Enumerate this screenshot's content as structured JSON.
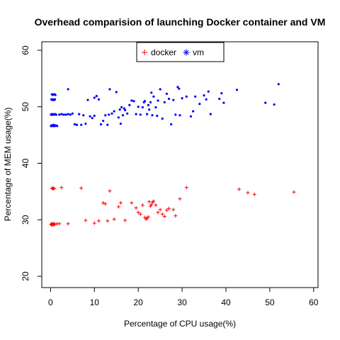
{
  "chart_data": {
    "type": "scatter",
    "title": "Overhead comparision of launching Docker container and VM",
    "xlabel": "Percentage of CPU usage(%)",
    "ylabel": "Percentage of MEM usage(%)",
    "xlim": [
      -2,
      61
    ],
    "ylim": [
      18,
      61.5
    ],
    "xticks": [
      0,
      10,
      20,
      30,
      40,
      50,
      60
    ],
    "yticks": [
      20,
      30,
      40,
      50,
      60
    ],
    "legend_position": "top-center",
    "series": [
      {
        "name": "docker",
        "marker": "plus",
        "color": "#ff0000",
        "points": [
          [
            0.1,
            29.2
          ],
          [
            0.2,
            29.1
          ],
          [
            0.3,
            29.3
          ],
          [
            0.4,
            29.2
          ],
          [
            0.5,
            29.1
          ],
          [
            0.6,
            29.2
          ],
          [
            0.7,
            29.3
          ],
          [
            0.8,
            29.2
          ],
          [
            1.0,
            29.2
          ],
          [
            1.5,
            29.3
          ],
          [
            2.0,
            29.3
          ],
          [
            4.0,
            29.3
          ],
          [
            0.3,
            35.6
          ],
          [
            0.5,
            35.5
          ],
          [
            0.7,
            35.6
          ],
          [
            0.8,
            35.5
          ],
          [
            2.5,
            35.7
          ],
          [
            7.0,
            35.6
          ],
          [
            13.5,
            35.1
          ],
          [
            8.0,
            29.9
          ],
          [
            10.0,
            29.4
          ],
          [
            11.0,
            29.8
          ],
          [
            13.0,
            29.8
          ],
          [
            17.0,
            29.9
          ],
          [
            12.0,
            33.0
          ],
          [
            12.5,
            32.8
          ],
          [
            14.5,
            30.1
          ],
          [
            15.5,
            32.3
          ],
          [
            16.0,
            33.0
          ],
          [
            18.5,
            33.0
          ],
          [
            19.5,
            32.1
          ],
          [
            20.0,
            31.3
          ],
          [
            20.5,
            31.0
          ],
          [
            21.0,
            32.6
          ],
          [
            21.5,
            30.4
          ],
          [
            21.8,
            30.1
          ],
          [
            22.0,
            30.3
          ],
          [
            22.3,
            30.5
          ],
          [
            22.5,
            33.2
          ],
          [
            22.8,
            32.4
          ],
          [
            23.0,
            32.7
          ],
          [
            23.3,
            33.1
          ],
          [
            23.5,
            33.3
          ],
          [
            24.0,
            32.6
          ],
          [
            24.5,
            31.3
          ],
          [
            25.0,
            31.8
          ],
          [
            25.5,
            31.0
          ],
          [
            26.0,
            30.6
          ],
          [
            26.5,
            31.7
          ],
          [
            27.0,
            32.0
          ],
          [
            28.0,
            31.8
          ],
          [
            28.5,
            30.7
          ],
          [
            29.5,
            33.7
          ],
          [
            31.0,
            35.7
          ],
          [
            43.0,
            35.4
          ],
          [
            45.0,
            34.8
          ],
          [
            46.5,
            34.5
          ],
          [
            55.5,
            34.9
          ]
        ]
      },
      {
        "name": "vm",
        "marker": "dot",
        "color": "#0000ff",
        "points": [
          [
            0.1,
            46.6
          ],
          [
            0.2,
            46.7
          ],
          [
            0.3,
            46.6
          ],
          [
            0.4,
            46.7
          ],
          [
            0.5,
            46.6
          ],
          [
            0.6,
            46.7
          ],
          [
            0.7,
            46.8
          ],
          [
            0.8,
            46.6
          ],
          [
            0.9,
            46.7
          ],
          [
            1.0,
            46.6
          ],
          [
            1.2,
            46.7
          ],
          [
            1.5,
            46.6
          ],
          [
            0.1,
            48.6
          ],
          [
            0.2,
            48.6
          ],
          [
            0.3,
            48.7
          ],
          [
            0.4,
            48.6
          ],
          [
            0.5,
            48.7
          ],
          [
            0.6,
            48.6
          ],
          [
            0.8,
            48.6
          ],
          [
            1.0,
            48.7
          ],
          [
            1.3,
            48.6
          ],
          [
            0.2,
            51.3
          ],
          [
            0.4,
            51.2
          ],
          [
            0.6,
            51.3
          ],
          [
            0.8,
            51.2
          ],
          [
            1.0,
            51.3
          ],
          [
            0.3,
            52.2
          ],
          [
            0.5,
            52.1
          ],
          [
            0.7,
            52.2
          ],
          [
            0.9,
            52.2
          ],
          [
            1.1,
            52.1
          ],
          [
            2.0,
            48.6
          ],
          [
            2.5,
            48.7
          ],
          [
            3.0,
            48.6
          ],
          [
            3.5,
            48.6
          ],
          [
            4.0,
            48.7
          ],
          [
            4.5,
            48.6
          ],
          [
            5.0,
            48.8
          ],
          [
            5.5,
            46.9
          ],
          [
            6.0,
            46.8
          ],
          [
            6.5,
            48.7
          ],
          [
            7.0,
            46.8
          ],
          [
            7.5,
            48.5
          ],
          [
            4.0,
            53.1
          ],
          [
            8.0,
            47.0
          ],
          [
            8.5,
            51.2
          ],
          [
            9.0,
            48.3
          ],
          [
            9.5,
            48.0
          ],
          [
            10.0,
            48.4
          ],
          [
            10.5,
            51.9
          ],
          [
            10.0,
            51.6
          ],
          [
            11.0,
            51.3
          ],
          [
            11.5,
            46.9
          ],
          [
            12.0,
            47.5
          ],
          [
            12.5,
            48.5
          ],
          [
            13.0,
            46.8
          ],
          [
            13.5,
            53.1
          ],
          [
            13.3,
            48.6
          ],
          [
            14.0,
            48.8
          ],
          [
            14.5,
            49.2
          ],
          [
            15.0,
            52.6
          ],
          [
            15.5,
            48.1
          ],
          [
            15.8,
            49.5
          ],
          [
            16.0,
            47.0
          ],
          [
            16.2,
            49.9
          ],
          [
            16.5,
            48.5
          ],
          [
            16.8,
            49.7
          ],
          [
            17.0,
            49.4
          ],
          [
            17.5,
            48.8
          ],
          [
            18.0,
            50.3
          ],
          [
            18.5,
            51.1
          ],
          [
            19.0,
            51.0
          ],
          [
            19.5,
            48.7
          ],
          [
            20.0,
            50.0
          ],
          [
            20.5,
            48.6
          ],
          [
            21.0,
            49.9
          ],
          [
            21.3,
            50.8
          ],
          [
            21.5,
            51.0
          ],
          [
            22.0,
            48.7
          ],
          [
            22.3,
            50.3
          ],
          [
            22.5,
            49.5
          ],
          [
            22.8,
            50.8
          ],
          [
            23.0,
            52.5
          ],
          [
            23.2,
            48.5
          ],
          [
            23.5,
            51.8
          ],
          [
            24.0,
            49.9
          ],
          [
            24.3,
            48.4
          ],
          [
            24.5,
            51.1
          ],
          [
            25.0,
            53.1
          ],
          [
            25.5,
            47.9
          ],
          [
            26.0,
            50.8
          ],
          [
            26.5,
            52.3
          ],
          [
            27.0,
            51.4
          ],
          [
            27.5,
            46.9
          ],
          [
            28.0,
            51.2
          ],
          [
            28.5,
            48.6
          ],
          [
            29.0,
            53.5
          ],
          [
            29.3,
            53.2
          ],
          [
            29.5,
            48.5
          ],
          [
            30.0,
            51.5
          ],
          [
            31.0,
            51.8
          ],
          [
            32.0,
            48.3
          ],
          [
            32.5,
            49.2
          ],
          [
            33.0,
            51.8
          ],
          [
            34.0,
            50.5
          ],
          [
            35.0,
            52.0
          ],
          [
            35.5,
            51.3
          ],
          [
            36.0,
            52.7
          ],
          [
            36.5,
            48.7
          ],
          [
            38.5,
            51.4
          ],
          [
            39.0,
            52.4
          ],
          [
            39.5,
            50.7
          ],
          [
            42.5,
            53.0
          ],
          [
            49.0,
            50.7
          ],
          [
            51.0,
            50.4
          ],
          [
            52.0,
            54.0
          ]
        ]
      }
    ]
  }
}
